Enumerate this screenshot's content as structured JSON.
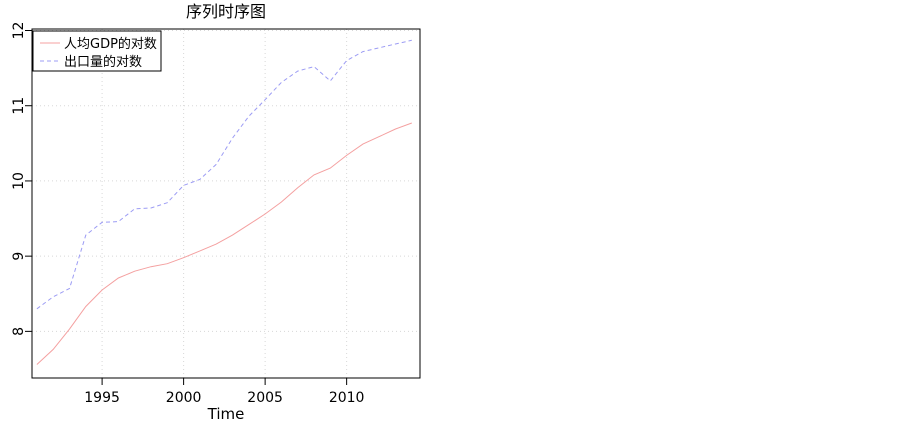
{
  "chart_data": {
    "type": "line",
    "title": "序列时序图",
    "xlabel": "Time",
    "ylabel": "",
    "xlim": [
      1990.7,
      2014.5
    ],
    "ylim": [
      7.38,
      12.02
    ],
    "xticks": [
      1995,
      2000,
      2005,
      2010
    ],
    "yticks": [
      8,
      9,
      10,
      11,
      12
    ],
    "grid": true,
    "legend": "top-left",
    "x": [
      1991,
      1992,
      1993,
      1994,
      1995,
      1996,
      1997,
      1998,
      1999,
      2000,
      2001,
      2002,
      2003,
      2004,
      2005,
      2006,
      2007,
      2008,
      2009,
      2010,
      2011,
      2012,
      2013,
      2014
    ],
    "series": [
      {
        "name": "人均GDP的对数",
        "color": "#f4a0a0",
        "style": "solid",
        "values": [
          7.56,
          7.76,
          8.03,
          8.33,
          8.55,
          8.71,
          8.8,
          8.86,
          8.9,
          8.98,
          9.07,
          9.16,
          9.28,
          9.42,
          9.56,
          9.72,
          9.91,
          10.08,
          10.17,
          10.34,
          10.49,
          10.59,
          10.69,
          10.77
        ]
      },
      {
        "name": "出口量的对数",
        "color": "#9c9cf4",
        "style": "dashed",
        "values": [
          8.3,
          8.46,
          8.57,
          9.28,
          9.45,
          9.46,
          9.63,
          9.64,
          9.71,
          9.94,
          10.02,
          10.22,
          10.57,
          10.86,
          11.08,
          11.31,
          11.46,
          11.52,
          11.33,
          11.6,
          11.72,
          11.77,
          11.82,
          11.87
        ]
      }
    ]
  }
}
